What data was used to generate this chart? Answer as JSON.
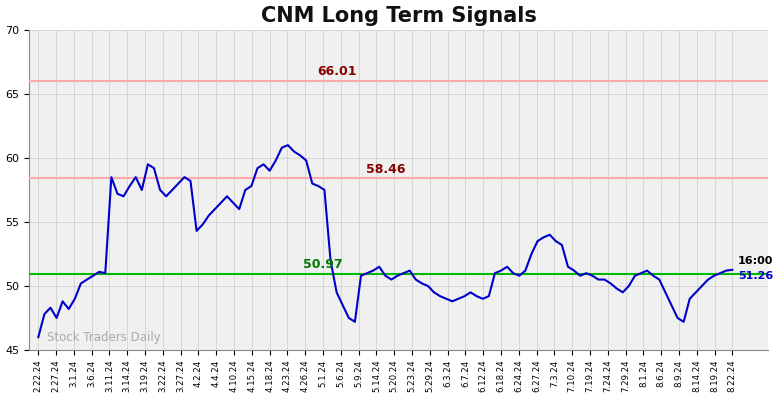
{
  "title": "CNM Long Term Signals",
  "title_fontsize": 15,
  "title_fontweight": "bold",
  "background_color": "#ffffff",
  "plot_bg_color": "#f0f0f0",
  "line_color": "#0000cc",
  "line_width": 1.5,
  "hline_green": 50.97,
  "hline_green_color": "#00bb00",
  "hline_green_linewidth": 1.5,
  "hline_red1": 66.01,
  "hline_red1_color": "#ffaaaa",
  "hline_red1_linewidth": 1.5,
  "hline_red2": 58.46,
  "hline_red2_color": "#ffaaaa",
  "hline_red2_linewidth": 1.5,
  "label_66": "66.01",
  "label_58": "58.46",
  "label_50": "50.97",
  "label_66_color": "#880000",
  "label_58_color": "#880000",
  "label_50_color": "#007700",
  "watermark": "Stock Traders Daily",
  "watermark_color": "#aaaaaa",
  "end_label_time": "16:00",
  "end_label_price": "51.26",
  "end_label_color": "#0000cc",
  "ylim": [
    45,
    70
  ],
  "yticks": [
    45,
    50,
    55,
    60,
    65,
    70
  ],
  "x_labels": [
    "2.22.24",
    "2.27.24",
    "3.1.24",
    "3.6.24",
    "3.11.24",
    "3.14.24",
    "3.19.24",
    "3.22.24",
    "3.27.24",
    "4.2.24",
    "4.4.24",
    "4.10.24",
    "4.15.24",
    "4.18.24",
    "4.23.24",
    "4.26.24",
    "5.1.24",
    "5.6.24",
    "5.9.24",
    "5.14.24",
    "5.20.24",
    "5.23.24",
    "5.29.24",
    "6.3.24",
    "6.7.24",
    "6.12.24",
    "6.18.24",
    "6.24.24",
    "6.27.24",
    "7.3.24",
    "7.10.24",
    "7.19.24",
    "7.24.24",
    "7.29.24",
    "8.1.24",
    "8.6.24",
    "8.9.24",
    "8.14.24",
    "8.19.24",
    "8.22.24"
  ],
  "y_values": [
    46.0,
    47.8,
    48.3,
    47.5,
    48.8,
    48.2,
    49.0,
    50.2,
    50.5,
    50.8,
    51.1,
    51.0,
    58.5,
    57.2,
    57.0,
    57.8,
    58.5,
    57.5,
    59.5,
    59.2,
    57.5,
    57.0,
    57.5,
    58.0,
    58.5,
    58.2,
    54.3,
    54.8,
    55.5,
    56.0,
    56.5,
    57.0,
    56.5,
    56.0,
    57.5,
    57.8,
    59.2,
    59.5,
    59.0,
    59.8,
    60.8,
    61.0,
    60.5,
    60.2,
    59.8,
    58.0,
    57.8,
    57.5,
    52.0,
    49.5,
    48.5,
    47.5,
    47.2,
    50.8,
    51.0,
    51.2,
    51.5,
    50.8,
    50.5,
    50.8,
    51.0,
    51.2,
    50.5,
    50.2,
    50.0,
    49.5,
    49.2,
    49.0,
    48.8,
    49.0,
    49.2,
    49.5,
    49.2,
    49.0,
    49.2,
    51.0,
    51.2,
    51.5,
    51.0,
    50.8,
    51.2,
    52.5,
    53.5,
    53.8,
    54.0,
    53.5,
    53.2,
    51.5,
    51.2,
    50.8,
    51.0,
    50.8,
    50.5,
    50.5,
    50.2,
    49.8,
    49.5,
    50.0,
    50.8,
    51.0,
    51.2,
    50.8,
    50.5,
    49.5,
    48.5,
    47.5,
    47.2,
    49.0,
    49.5,
    50.0,
    50.5,
    50.8,
    51.0,
    51.2,
    51.26
  ]
}
